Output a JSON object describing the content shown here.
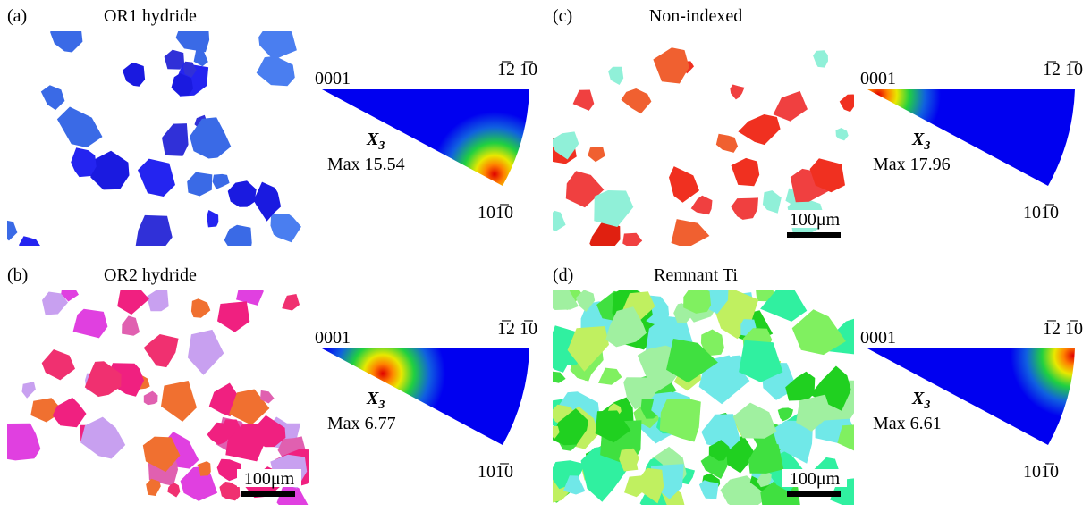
{
  "panels": [
    {
      "label": "(a)",
      "title": "OR1 hydride",
      "ipf": {
        "corner_0001": "0001",
        "corner_1210": "1̅2 1̅0",
        "corner_1010": "101̅0",
        "axis_symbol": "X",
        "axis_subscript": "3",
        "max": "Max 15.54"
      }
    },
    {
      "label": "(b)",
      "title": "OR2 hydride",
      "scale_bar": "100μm",
      "ipf": {
        "corner_0001": "0001",
        "corner_1210": "1̅2 1̅0",
        "corner_1010": "101̅0",
        "axis_symbol": "X",
        "axis_subscript": "3",
        "max": "Max 6.77"
      }
    },
    {
      "label": "(c)",
      "title": "Non-indexed",
      "scale_bar": "100μm",
      "ipf": {
        "corner_0001": "0001",
        "corner_1210": "1̅2 1̅0",
        "corner_1010": "101̅0",
        "axis_symbol": "X",
        "axis_subscript": "3",
        "max": "Max 17.96"
      }
    },
    {
      "label": "(d)",
      "title": "Remnant Ti",
      "scale_bar": "100μm",
      "ipf": {
        "corner_0001": "0001",
        "corner_1210": "1̅2 1̅0",
        "corner_1010": "101̅0",
        "axis_symbol": "X",
        "axis_subscript": "3",
        "max": "Max 6.61"
      }
    }
  ]
}
